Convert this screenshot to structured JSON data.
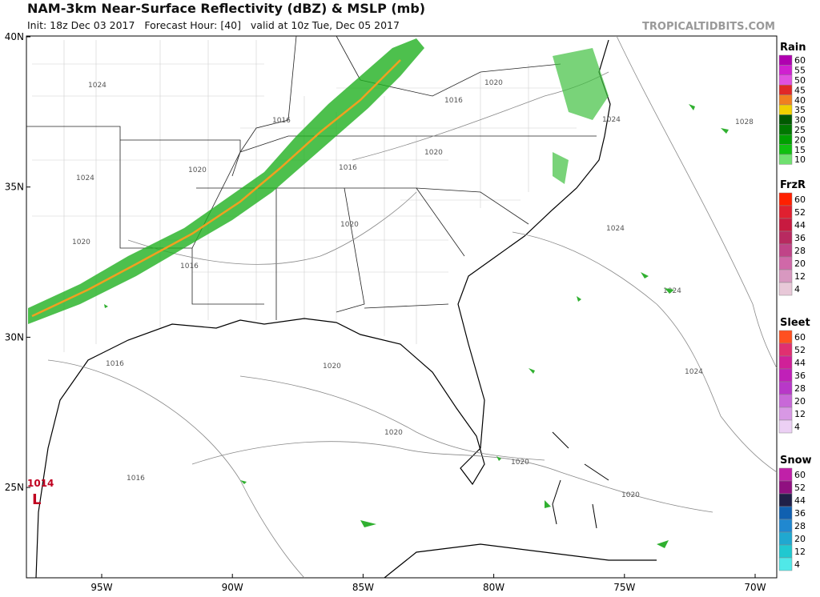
{
  "header": {
    "title": "NAM-3km Near-Surface Reflectivity (dBZ) & MSLP (mb)",
    "subtitle": "Init: 18z Dec 03 2017   Forecast Hour: [40]   valid at 10z Tue, Dec 05 2017",
    "brand": "TROPICALTIDBITS.COM"
  },
  "map": {
    "lat_labels": [
      "40N",
      "35N",
      "30N",
      "25N"
    ],
    "lon_labels": [
      "95W",
      "90W",
      "85W",
      "80W",
      "75W",
      "70W"
    ],
    "isobars": [
      "1024",
      "1024",
      "1020",
      "1020",
      "1020",
      "1016",
      "1016",
      "1016",
      "1020",
      "1020",
      "1016",
      "1020",
      "1016",
      "1024",
      "1024",
      "1028",
      "1024",
      "1020",
      "1020",
      "1024",
      "1020",
      "1016"
    ],
    "low": {
      "symbol": "L",
      "pressure": "1014"
    }
  },
  "legends": [
    {
      "title": "Rain",
      "levels": [
        60,
        55,
        50,
        45,
        40,
        35,
        30,
        25,
        20,
        15,
        10
      ],
      "colors": [
        "#b000b0",
        "#d020d0",
        "#e050e0",
        "#e02828",
        "#f08020",
        "#f0d000",
        "#005a00",
        "#007800",
        "#00a000",
        "#10c010",
        "#70e070"
      ]
    },
    {
      "title": "FrzR",
      "levels": [
        60,
        52,
        44,
        36,
        28,
        20,
        12,
        4
      ],
      "colors": [
        "#ff2000",
        "#e02030",
        "#c81a40",
        "#b82a60",
        "#c04488",
        "#d068a8",
        "#d898c0",
        "#e8c8d8"
      ]
    },
    {
      "title": "Sleet",
      "levels": [
        60,
        52,
        44,
        36,
        28,
        20,
        12,
        4
      ],
      "colors": [
        "#ff5020",
        "#e03070",
        "#d02098",
        "#c020b8",
        "#b838c8",
        "#c868d8",
        "#d898e4",
        "#ecd0f4"
      ]
    },
    {
      "title": "Snow",
      "levels": [
        60,
        52,
        44,
        36,
        28,
        20,
        12,
        4
      ],
      "colors": [
        "#c020a8",
        "#901080",
        "#202048",
        "#1060b0",
        "#2088d0",
        "#20a8d0",
        "#20c8d0",
        "#50e8e8"
      ]
    }
  ]
}
